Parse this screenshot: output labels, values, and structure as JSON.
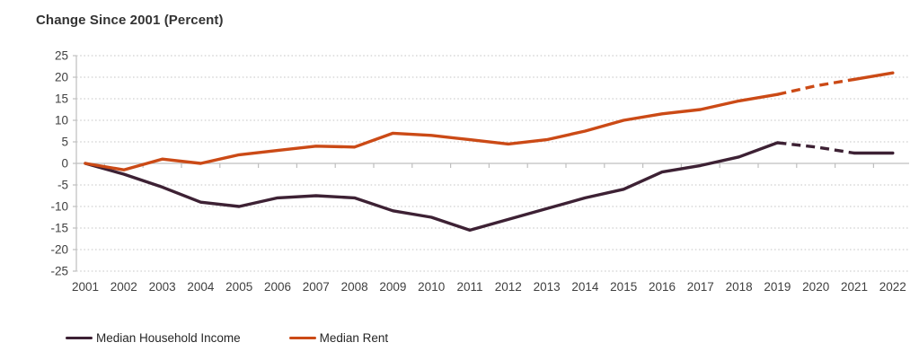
{
  "chart_data": {
    "type": "line",
    "title": "Change Since 2001 (Percent)",
    "x": [
      "2001",
      "2002",
      "2003",
      "2004",
      "2005",
      "2006",
      "2007",
      "2008",
      "2009",
      "2010",
      "2011",
      "2012",
      "2013",
      "2014",
      "2015",
      "2016",
      "2017",
      "2018",
      "2019",
      "2020",
      "2021",
      "2022"
    ],
    "series": [
      {
        "name": "Median Household Income",
        "color": "#3d2134",
        "values": [
          0,
          -2.5,
          -5.5,
          -9,
          -10,
          -8,
          -7.5,
          -8,
          -11,
          -12.5,
          -15.5,
          -13,
          -10.5,
          -8,
          -6,
          -2,
          -0.5,
          1.5,
          4.8,
          3.8,
          2.4,
          2.4
        ],
        "dashed_segment": [
          "2019",
          "2021"
        ]
      },
      {
        "name": "Median Rent",
        "color": "#cb4a16",
        "values": [
          0,
          -1.5,
          1,
          0,
          2,
          3,
          4,
          3.8,
          7,
          6.5,
          5.5,
          4.5,
          5.5,
          7.5,
          10,
          11.5,
          12.5,
          14.5,
          16,
          18,
          19.5,
          21
        ],
        "dashed_segment": [
          "2019",
          "2021"
        ]
      }
    ],
    "ylim": [
      -25,
      25
    ],
    "yticks": [
      25,
      20,
      15,
      10,
      5,
      0,
      -5,
      -10,
      -15,
      -20,
      -25
    ],
    "xlabel": "",
    "ylabel": "",
    "grid": "horizontal dotted",
    "legend_position": "bottom-left",
    "style_note": "segments between 2019 and 2021 drawn dashed; final 2021-2022 segment solid"
  },
  "colors": {
    "gridline": "#d9d9d9",
    "axis": "#bfbfbf",
    "tick_label": "#404040",
    "title_text": "#333333"
  }
}
